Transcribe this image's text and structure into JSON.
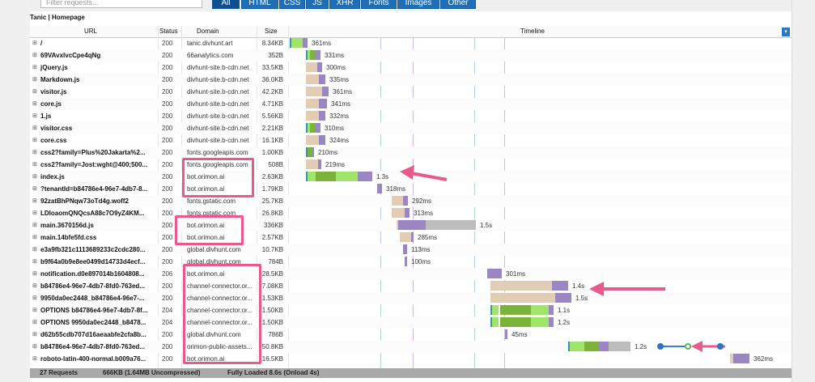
{
  "filter": {
    "placeholder": "Filter requests...",
    "tabs": [
      {
        "label": "All",
        "active": true
      },
      {
        "label": "HTML"
      },
      {
        "label": "CSS"
      },
      {
        "label": "JS"
      },
      {
        "label": "XHR"
      },
      {
        "label": "Fonts"
      },
      {
        "label": "Images"
      },
      {
        "label": "Other"
      }
    ]
  },
  "page_title": "Tanic | Homepage",
  "columns": {
    "url": "URL",
    "status": "Status",
    "domain": "Domain",
    "size": "Size",
    "timeline": "Timeline"
  },
  "timeline_ms_per_unit": 1,
  "rows": [
    {
      "url": "/",
      "status": "200",
      "domain": "tanic.divhunt.art",
      "size": "8.34KB",
      "time": "361ms"
    },
    {
      "url": "69VAvxlvcCpe4qNg",
      "status": "200",
      "domain": "66analytics.com",
      "size": "352B",
      "time": "331ms"
    },
    {
      "url": "jQuery.js",
      "status": "200",
      "domain": "divhunt-site.b-cdn.net",
      "size": "33.5KB",
      "time": "300ms"
    },
    {
      "url": "Markdown.js",
      "status": "200",
      "domain": "divhunt-site.b-cdn.net",
      "size": "36.0KB",
      "time": "335ms"
    },
    {
      "url": "visitor.js",
      "status": "200",
      "domain": "divhunt-site.b-cdn.net",
      "size": "42.2KB",
      "time": "361ms"
    },
    {
      "url": "core.js",
      "status": "200",
      "domain": "divhunt-site.b-cdn.net",
      "size": "4.71KB",
      "time": "341ms"
    },
    {
      "url": "1.js",
      "status": "200",
      "domain": "divhunt-site.b-cdn.net",
      "size": "5.56KB",
      "time": "332ms"
    },
    {
      "url": "visitor.css",
      "status": "200",
      "domain": "divhunt-site.b-cdn.net",
      "size": "2.21KB",
      "time": "310ms"
    },
    {
      "url": "core.css",
      "status": "200",
      "domain": "divhunt-site.b-cdn.net",
      "size": "16.1KB",
      "time": "324ms"
    },
    {
      "url": "css2?family=Plus%20Jakarta%2...",
      "status": "200",
      "domain": "fonts.googleapis.com",
      "size": "1.00KB",
      "time": "210ms"
    },
    {
      "url": "css2?family=Jost:wght@400;500...",
      "status": "200",
      "domain": "fonts.googleapis.com",
      "size": "508B",
      "time": "219ms"
    },
    {
      "url": "index.js",
      "status": "200",
      "domain": "bot.orimon.ai",
      "size": "2.63KB",
      "time": "1.3s"
    },
    {
      "url": "?tenantId=b84786e4-96e7-4db7-8...",
      "status": "200",
      "domain": "bot.orimon.ai",
      "size": "1.79KB",
      "time": "318ms"
    },
    {
      "url": "92zatBhPNqw73oTd4g.woff2",
      "status": "200",
      "domain": "fonts.gstatic.com",
      "size": "25.7KB",
      "time": "292ms"
    },
    {
      "url": "LDIoaomQNQcsA88c7O9yZ4KM...",
      "status": "200",
      "domain": "fonts.gstatic.com",
      "size": "26.8KB",
      "time": "313ms"
    },
    {
      "url": "main.3670156d.js",
      "status": "200",
      "domain": "bot.orimon.ai",
      "size": "336KB",
      "time": "1.5s"
    },
    {
      "url": "main.14bfe5fd.css",
      "status": "200",
      "domain": "bot.orimon.ai",
      "size": "2.57KB",
      "time": "285ms"
    },
    {
      "url": "e3a9fb321c1113689233c2cdc280...",
      "status": "200",
      "domain": "global.divhunt.com",
      "size": "10.7KB",
      "time": "113ms"
    },
    {
      "url": "b9f64a0b9e8ee0499d14733d4ecf...",
      "status": "200",
      "domain": "global.divhunt.com",
      "size": "784B",
      "time": "100ms"
    },
    {
      "url": "notification.d0e897014b1604808...",
      "status": "206",
      "domain": "bot.orimon.ai",
      "size": "28.5KB",
      "time": "301ms"
    },
    {
      "url": "b84786e4-96e7-4db7-8fd0-763ed...",
      "status": "200",
      "domain": "channel-connector.or...",
      "size": "7.08KB",
      "time": "1.4s"
    },
    {
      "url": "9950da0ec2448_b84786e4-96e7-...",
      "status": "200",
      "domain": "channel-connector.or...",
      "size": "1.53KB",
      "time": "1.5s"
    },
    {
      "url": "OPTIONS b84786e4-96e7-4db7-8f...",
      "status": "204",
      "domain": "channel-connector.or...",
      "size": "1.50KB",
      "time": "1.1s"
    },
    {
      "url": "OPTIONS 9950da0ec2448_b8478...",
      "status": "204",
      "domain": "channel-connector.or...",
      "size": "1.50KB",
      "time": "1.2s"
    },
    {
      "url": "d62b55cdb707d16aeaabfe2cfa8b...",
      "status": "200",
      "domain": "global.divhunt.com",
      "size": "786B",
      "time": "45ms"
    },
    {
      "url": "b84786e4-96e7-4db7-8fd0-763ed...",
      "status": "200",
      "domain": "orimon-public-assets...",
      "size": "50.8KB",
      "time": "1.2s"
    },
    {
      "url": "roboto-latin-400-normal.b009a76...",
      "status": "200",
      "domain": "bot.orimon.ai",
      "size": "16.5KB",
      "time": "362ms"
    }
  ],
  "footer": {
    "requests": "27 Requests",
    "size": "666KB (1.64MB Uncompressed)",
    "loaded": "Fully Loaded 8.6s (Onload 4s)"
  },
  "colors": {
    "accent": "#1f6fb8",
    "highlight": "#e75a8b",
    "blocked": "#e2ccb3",
    "connect": "#9ee56a",
    "download": "#9b86c4",
    "waiting": "#7ab23a",
    "dns": "#3a90c8",
    "stalled": "#bdbdbd"
  }
}
